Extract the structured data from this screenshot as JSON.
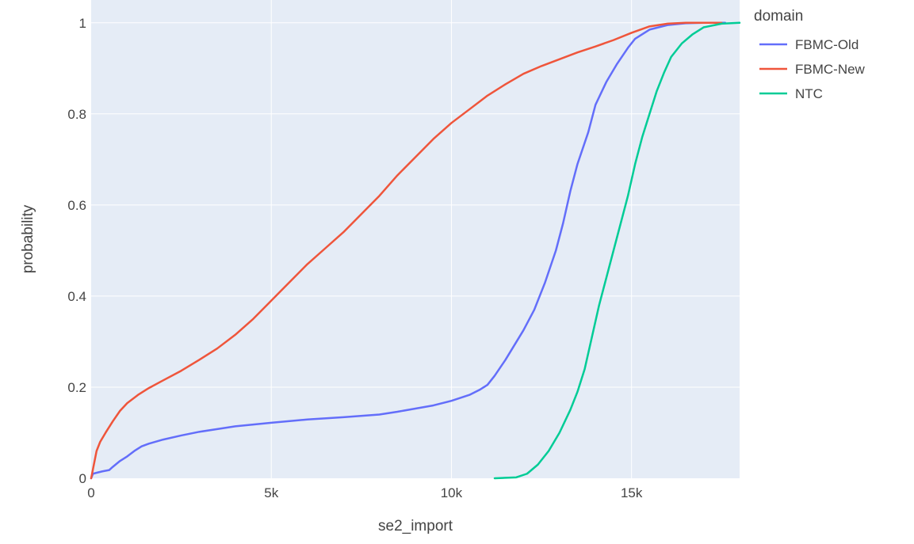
{
  "chart_data": {
    "type": "line",
    "xlabel": "se2_import",
    "ylabel": "probability",
    "xlim": [
      0,
      18000
    ],
    "ylim": [
      0,
      1.05
    ],
    "x_ticks": [
      0,
      5000,
      10000,
      15000
    ],
    "x_tick_labels": [
      "0",
      "5k",
      "10k",
      "15k"
    ],
    "y_ticks": [
      0,
      0.2,
      0.4,
      0.6,
      0.8,
      1
    ],
    "y_tick_labels": [
      "0",
      "0.2",
      "0.4",
      "0.6",
      "0.8",
      "1"
    ],
    "grid": true,
    "legend": {
      "title": "domain",
      "placement": "top-right-outside"
    },
    "colors": {
      "plot_background": "#e5ecf6",
      "grid": "#ffffff",
      "text": "#444444"
    },
    "series": [
      {
        "name": "FBMC-Old",
        "color": "#636efa",
        "points": [
          [
            0,
            0.0
          ],
          [
            50,
            0.01
          ],
          [
            200,
            0.013
          ],
          [
            300,
            0.015
          ],
          [
            500,
            0.018
          ],
          [
            600,
            0.025
          ],
          [
            800,
            0.038
          ],
          [
            1000,
            0.048
          ],
          [
            1200,
            0.06
          ],
          [
            1400,
            0.07
          ],
          [
            1600,
            0.076
          ],
          [
            2000,
            0.085
          ],
          [
            2500,
            0.094
          ],
          [
            3000,
            0.102
          ],
          [
            3500,
            0.108
          ],
          [
            4000,
            0.114
          ],
          [
            4500,
            0.118
          ],
          [
            5000,
            0.122
          ],
          [
            6000,
            0.129
          ],
          [
            7000,
            0.134
          ],
          [
            8000,
            0.14
          ],
          [
            8500,
            0.146
          ],
          [
            9000,
            0.153
          ],
          [
            9500,
            0.16
          ],
          [
            10000,
            0.17
          ],
          [
            10500,
            0.183
          ],
          [
            10800,
            0.195
          ],
          [
            11000,
            0.205
          ],
          [
            11200,
            0.225
          ],
          [
            11500,
            0.26
          ],
          [
            12000,
            0.325
          ],
          [
            12300,
            0.37
          ],
          [
            12600,
            0.43
          ],
          [
            12900,
            0.5
          ],
          [
            13100,
            0.56
          ],
          [
            13300,
            0.63
          ],
          [
            13500,
            0.69
          ],
          [
            13800,
            0.76
          ],
          [
            14000,
            0.82
          ],
          [
            14300,
            0.87
          ],
          [
            14600,
            0.91
          ],
          [
            14900,
            0.945
          ],
          [
            15100,
            0.965
          ],
          [
            15500,
            0.985
          ],
          [
            16000,
            0.995
          ],
          [
            16500,
            0.999
          ],
          [
            17000,
            1.0
          ],
          [
            17600,
            1.0
          ]
        ]
      },
      {
        "name": "FBMC-New",
        "color": "#ef553b",
        "points": [
          [
            0,
            0.0
          ],
          [
            50,
            0.02
          ],
          [
            150,
            0.06
          ],
          [
            250,
            0.08
          ],
          [
            400,
            0.1
          ],
          [
            600,
            0.125
          ],
          [
            800,
            0.148
          ],
          [
            1000,
            0.165
          ],
          [
            1300,
            0.183
          ],
          [
            1600,
            0.198
          ],
          [
            2000,
            0.215
          ],
          [
            2500,
            0.236
          ],
          [
            3000,
            0.26
          ],
          [
            3500,
            0.285
          ],
          [
            4000,
            0.315
          ],
          [
            4500,
            0.35
          ],
          [
            5000,
            0.39
          ],
          [
            5500,
            0.43
          ],
          [
            6000,
            0.47
          ],
          [
            6500,
            0.505
          ],
          [
            7000,
            0.54
          ],
          [
            7500,
            0.58
          ],
          [
            8000,
            0.62
          ],
          [
            8500,
            0.665
          ],
          [
            9000,
            0.705
          ],
          [
            9500,
            0.745
          ],
          [
            10000,
            0.78
          ],
          [
            10500,
            0.81
          ],
          [
            11000,
            0.84
          ],
          [
            11500,
            0.865
          ],
          [
            12000,
            0.888
          ],
          [
            12500,
            0.905
          ],
          [
            13000,
            0.92
          ],
          [
            13500,
            0.935
          ],
          [
            14000,
            0.948
          ],
          [
            14500,
            0.962
          ],
          [
            15000,
            0.978
          ],
          [
            15500,
            0.992
          ],
          [
            16000,
            0.998
          ],
          [
            16500,
            1.0
          ],
          [
            17500,
            1.0
          ]
        ]
      },
      {
        "name": "NTC",
        "color": "#00cc96",
        "points": [
          [
            11200,
            0.0
          ],
          [
            11800,
            0.002
          ],
          [
            12100,
            0.01
          ],
          [
            12400,
            0.03
          ],
          [
            12700,
            0.06
          ],
          [
            13000,
            0.1
          ],
          [
            13300,
            0.15
          ],
          [
            13500,
            0.19
          ],
          [
            13700,
            0.24
          ],
          [
            13900,
            0.31
          ],
          [
            14100,
            0.38
          ],
          [
            14300,
            0.44
          ],
          [
            14500,
            0.5
          ],
          [
            14700,
            0.56
          ],
          [
            14900,
            0.62
          ],
          [
            15100,
            0.69
          ],
          [
            15300,
            0.75
          ],
          [
            15500,
            0.8
          ],
          [
            15700,
            0.85
          ],
          [
            15900,
            0.89
          ],
          [
            16100,
            0.925
          ],
          [
            16400,
            0.955
          ],
          [
            16700,
            0.975
          ],
          [
            17000,
            0.99
          ],
          [
            17500,
            0.998
          ],
          [
            18000,
            1.0
          ]
        ]
      }
    ]
  }
}
